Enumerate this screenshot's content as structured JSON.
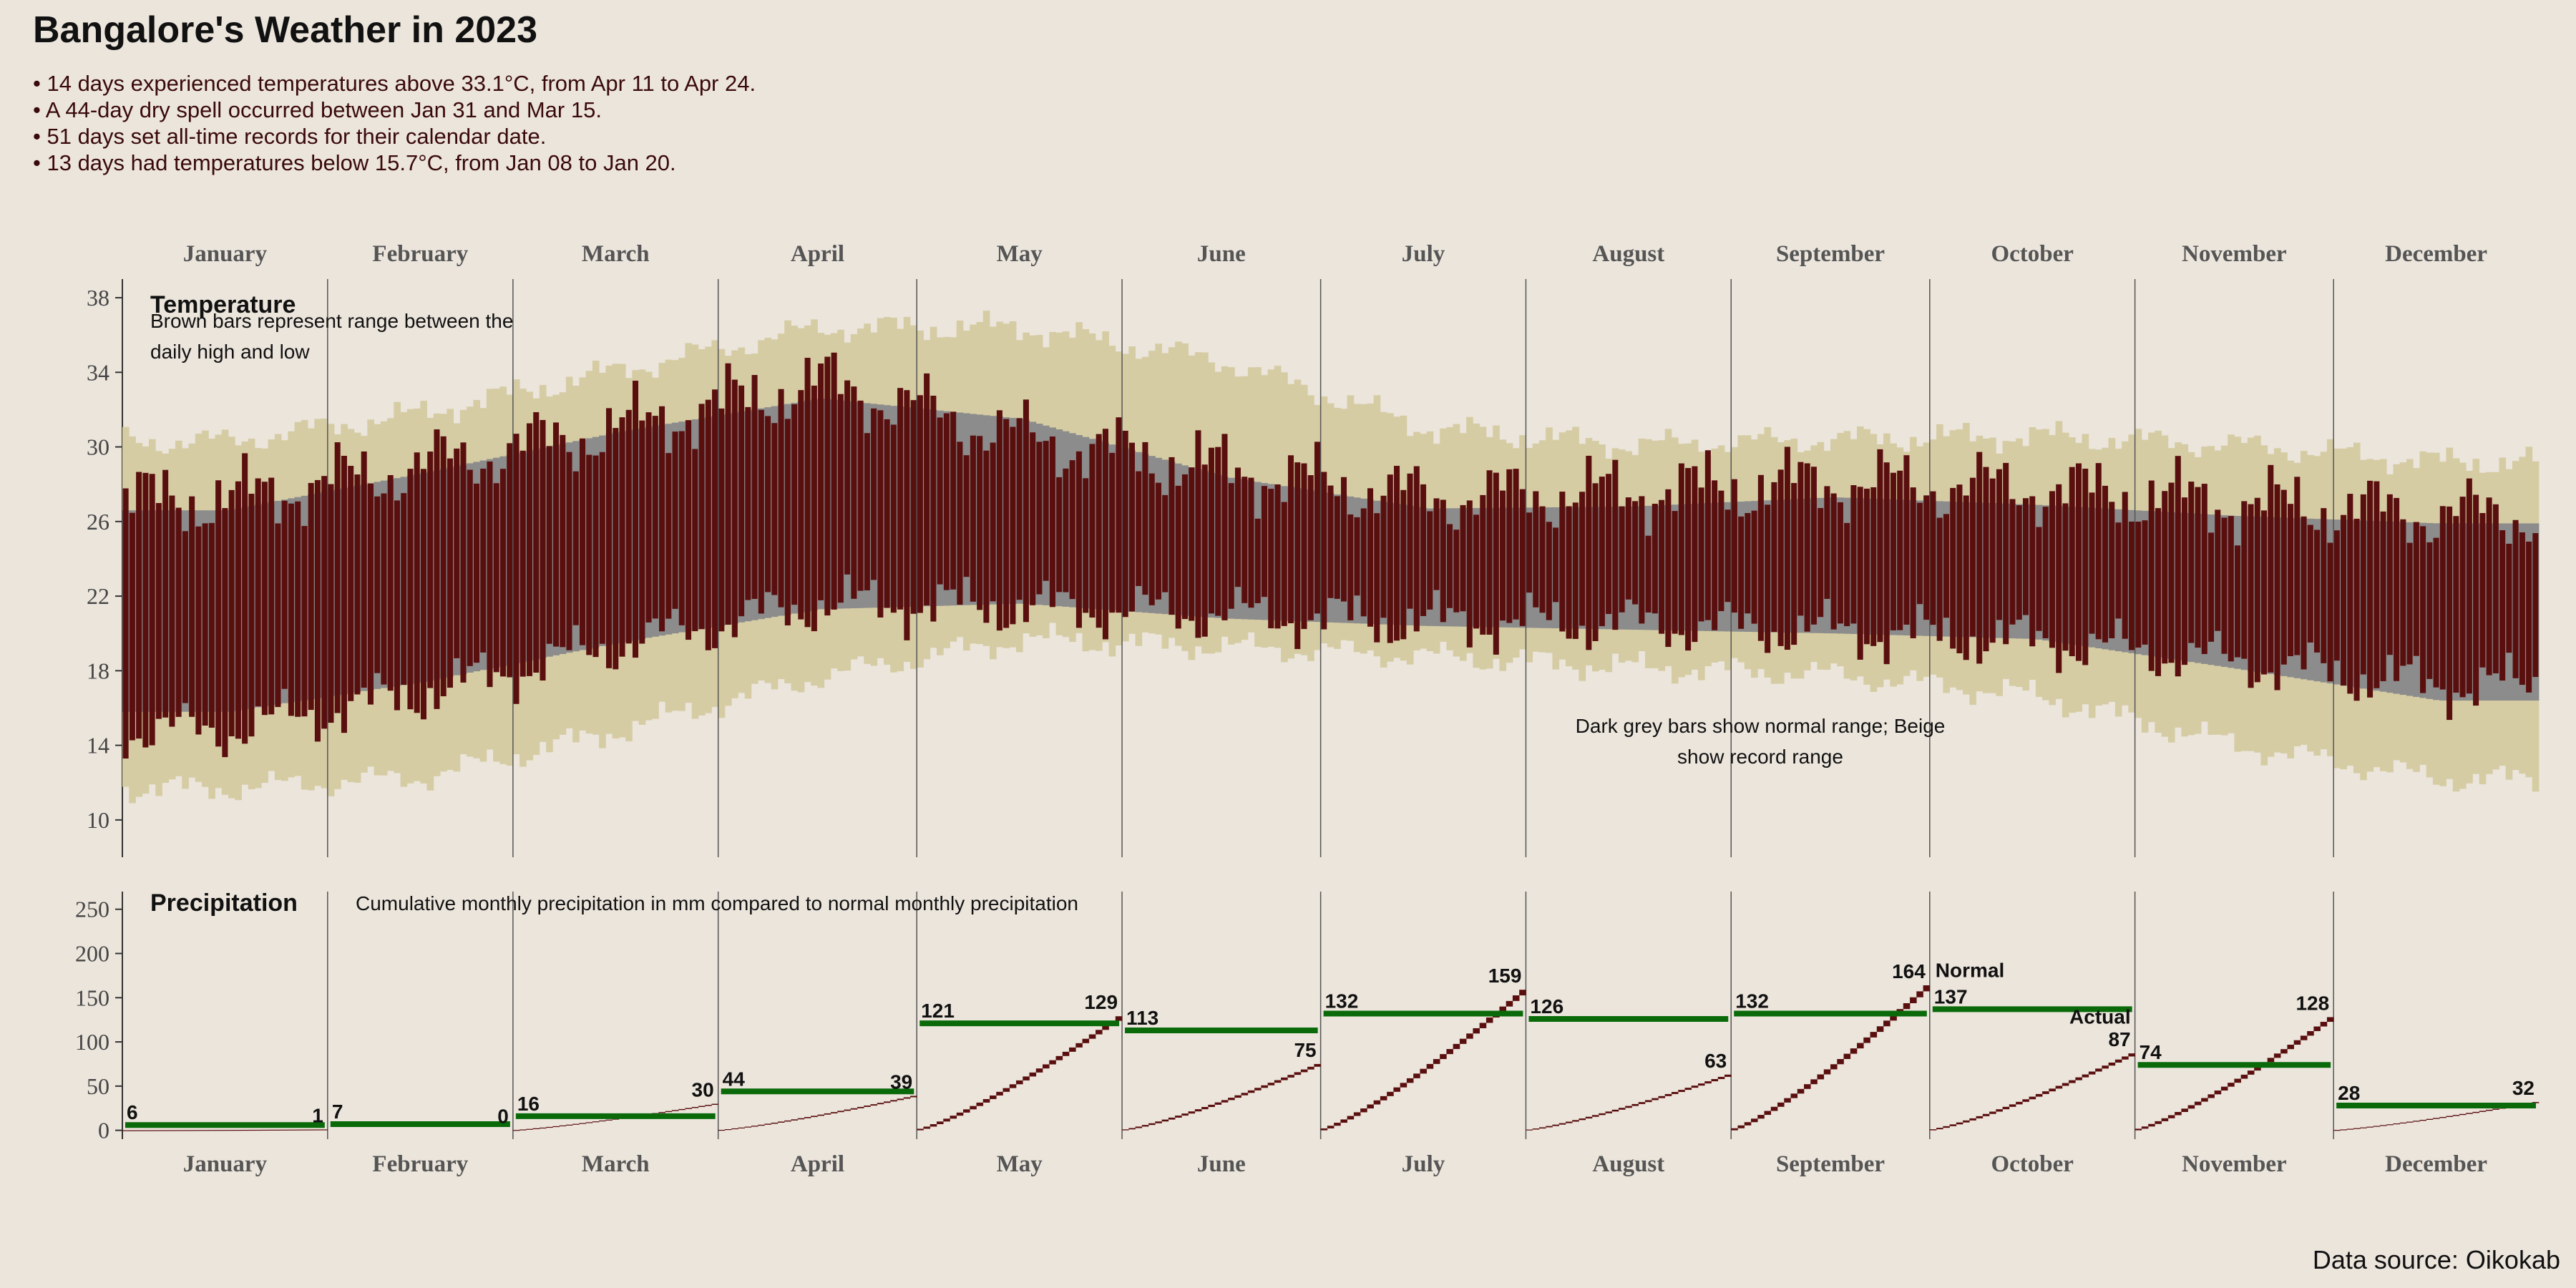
{
  "title": "Bangalore's Weather in 2023",
  "bullets": [
    "14 days experienced temperatures above 33.1°C, from Apr 11 to Apr 24.",
    "A 44-day dry spell occurred between Jan 31 and Mar 15.",
    "51 days set all-time records for their calendar date.",
    "13 days had temperatures below 15.7°C, from Jan 08 to Jan 20."
  ],
  "source": "Data source: Oikokab",
  "colors": {
    "background": "#ebe5dc",
    "actual": "#5a0f0f",
    "normal": "#8c8c8c",
    "record": "#d6cca4",
    "normal_precip": "#0a6a0a"
  },
  "chart_data": [
    {
      "type": "bar",
      "panel": "Temperature",
      "title": "Temperature",
      "annotation_actual": "Brown bars represent range between the daily high and low",
      "annotation_ranges": "Dark grey bars show normal range; Beige show record range",
      "months": [
        "January",
        "February",
        "March",
        "April",
        "May",
        "June",
        "July",
        "August",
        "September",
        "October",
        "November",
        "December"
      ],
      "yticks": [
        10,
        14,
        18,
        22,
        26,
        30,
        34,
        38
      ],
      "ylim": [
        8,
        39
      ],
      "series_anchors_monthly": {
        "actual_high": [
          27.2,
          29.0,
          31.0,
          33.5,
          30.5,
          28.8,
          27.3,
          27.6,
          28.1,
          27.8,
          27.0,
          26.4
        ],
        "actual_low": [
          14.8,
          16.8,
          19.4,
          21.6,
          21.4,
          21.0,
          20.6,
          20.5,
          20.1,
          19.6,
          18.5,
          17.2
        ],
        "normal_high": [
          26.6,
          28.6,
          30.8,
          32.6,
          31.5,
          28.4,
          26.7,
          26.8,
          27.3,
          26.9,
          26.3,
          25.9
        ],
        "normal_low": [
          15.8,
          17.4,
          19.5,
          21.3,
          21.6,
          20.8,
          20.4,
          20.2,
          20.0,
          19.7,
          18.1,
          16.4
        ],
        "record_high": [
          29.5,
          31.0,
          33.3,
          35.6,
          35.6,
          33.8,
          30.2,
          29.3,
          29.6,
          29.8,
          29.3,
          28.4
        ],
        "record_low": [
          12.2,
          12.8,
          15.3,
          18.2,
          20.2,
          19.8,
          19.3,
          18.7,
          18.3,
          17.2,
          14.5,
          12.7
        ]
      }
    },
    {
      "type": "bar",
      "panel": "Precipitation",
      "title": "Precipitation",
      "subtitle": "Cumulative monthly precipitation in mm compared to normal monthly precipitation",
      "yticks": [
        0,
        50,
        100,
        150,
        200,
        250
      ],
      "ylim": [
        -10,
        270
      ],
      "legend_normal": "Normal",
      "legend_actual": "Actual",
      "normal_mm": [
        6,
        7,
        16,
        44,
        121,
        113,
        132,
        126,
        132,
        137,
        74,
        28
      ],
      "actual_month_end_mm": [
        1,
        0,
        30,
        39,
        129,
        75,
        159,
        63,
        164,
        87,
        128,
        32
      ]
    }
  ]
}
